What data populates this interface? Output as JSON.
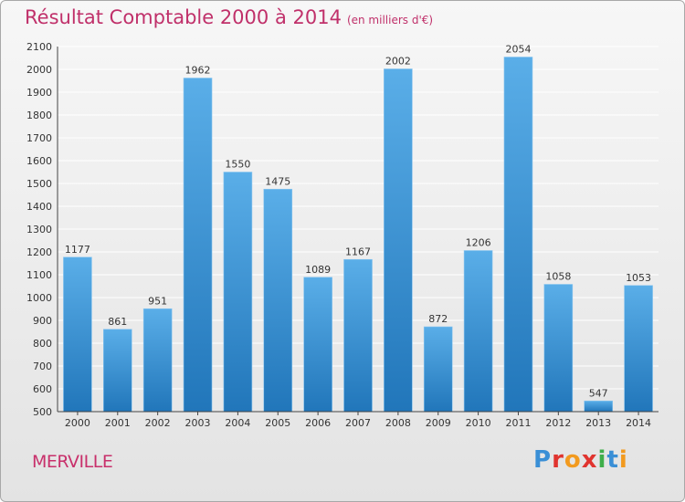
{
  "header": {
    "title": "Résultat Comptable 2000 à 2014",
    "subtitle": "(en milliers d'€)"
  },
  "footer": {
    "commune": "MERVILLE",
    "logo_text": "Proxiti",
    "logo_colors": [
      "#3a8fd6",
      "#e0342f",
      "#f29a1f",
      "#e0342f",
      "#3fae4a",
      "#3a8fd6",
      "#f29a1f"
    ]
  },
  "chart_data": {
    "type": "bar",
    "title": "Résultat Comptable 2000 à 2014",
    "subtitle": "(en milliers d'€)",
    "xlabel": "",
    "ylabel": "",
    "categories": [
      "2000",
      "2001",
      "2002",
      "2003",
      "2004",
      "2005",
      "2006",
      "2007",
      "2008",
      "2009",
      "2010",
      "2011",
      "2012",
      "2013",
      "2014"
    ],
    "values": [
      1177,
      861,
      951,
      1962,
      1550,
      1475,
      1089,
      1167,
      2002,
      872,
      1206,
      2054,
      1058,
      547,
      1053
    ],
    "ylim": [
      500,
      2100
    ],
    "yticks": [
      500,
      600,
      700,
      800,
      900,
      1000,
      1100,
      1200,
      1300,
      1400,
      1500,
      1600,
      1700,
      1800,
      1900,
      2000,
      2100
    ],
    "grid": true,
    "legend": "none",
    "colors": {
      "bar_light": "#5aaee8",
      "bar_dark": "#2176ba",
      "grid": "#ffffff",
      "axis": "#444444"
    }
  }
}
